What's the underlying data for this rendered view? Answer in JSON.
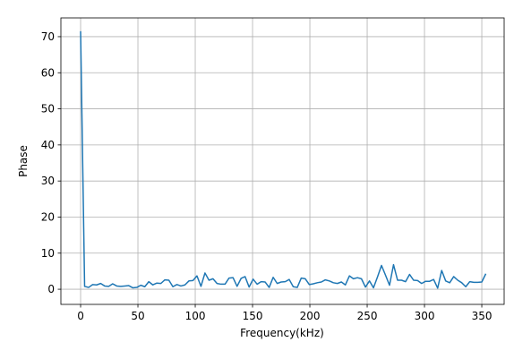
{
  "chart_data": {
    "type": "line",
    "xlabel": "Frequency(kHz)",
    "ylabel": "Phase",
    "x": [
      0,
      3.5,
      7,
      10.5,
      14,
      17.5,
      21,
      24.5,
      28,
      31.5,
      35,
      38.5,
      42,
      45.5,
      49,
      52.5,
      56,
      59.5,
      63,
      66.5,
      70,
      73.5,
      77,
      80.5,
      84,
      87.5,
      91,
      94.5,
      98,
      101.5,
      105,
      108.5,
      112,
      115.5,
      119,
      122.5,
      126,
      129.5,
      133,
      136.5,
      140,
      143.5,
      147,
      150.5,
      154,
      157.5,
      161,
      164.5,
      168,
      171.5,
      175,
      178.5,
      182,
      185.5,
      189,
      192.5,
      196,
      199.5,
      203,
      206.5,
      210,
      213.5,
      217,
      220.5,
      224,
      227.5,
      231,
      234.5,
      238,
      241.5,
      245,
      248.5,
      252,
      255.5,
      259,
      262.5,
      266,
      269.5,
      273,
      276.5,
      280,
      283.5,
      287,
      290.5,
      294,
      297.5,
      301,
      304.5,
      308,
      311.5,
      315,
      318.5,
      322,
      325.5,
      329,
      332.5,
      336,
      339.5,
      343,
      346.5,
      350,
      353.5
    ],
    "series": [
      {
        "color": "#1f77b4",
        "values": [
          71.5,
          0.8,
          0.5,
          1.3,
          1.2,
          1.6,
          0.9,
          0.8,
          1.5,
          0.9,
          0.8,
          0.9,
          1.0,
          0.4,
          0.5,
          1.1,
          0.7,
          2.1,
          1.2,
          1.7,
          1.6,
          2.6,
          2.5,
          0.7,
          1.3,
          0.9,
          1.2,
          2.3,
          2.4,
          3.7,
          0.8,
          4.5,
          2.5,
          2.9,
          1.6,
          1.4,
          1.4,
          3.1,
          3.2,
          0.8,
          3.0,
          3.5,
          0.6,
          2.8,
          1.4,
          2.1,
          2.0,
          0.5,
          3.3,
          1.6,
          2.0,
          2.1,
          2.7,
          0.7,
          0.5,
          3.1,
          2.9,
          1.3,
          1.5,
          1.8,
          2.0,
          2.6,
          2.3,
          1.8,
          1.6,
          2.0,
          1.2,
          3.7,
          2.9,
          3.2,
          2.9,
          0.6,
          2.3,
          0.4,
          3.4,
          6.6,
          3.9,
          1.1,
          6.8,
          2.5,
          2.5,
          2.1,
          4.1,
          2.5,
          2.4,
          1.6,
          2.2,
          2.2,
          2.7,
          0.3,
          5.2,
          2.3,
          1.8,
          3.5,
          2.5,
          1.8,
          0.7,
          2.1,
          1.9,
          1.9,
          2.0,
          4.3
        ]
      }
    ],
    "xlim": [
      -17.2,
      369.5
    ],
    "ylim": [
      -4.2,
      75.2
    ],
    "xticks": [
      0,
      50,
      100,
      150,
      200,
      250,
      300,
      350
    ],
    "yticks": [
      0,
      10,
      20,
      30,
      40,
      50,
      60,
      70
    ],
    "grid": true
  }
}
